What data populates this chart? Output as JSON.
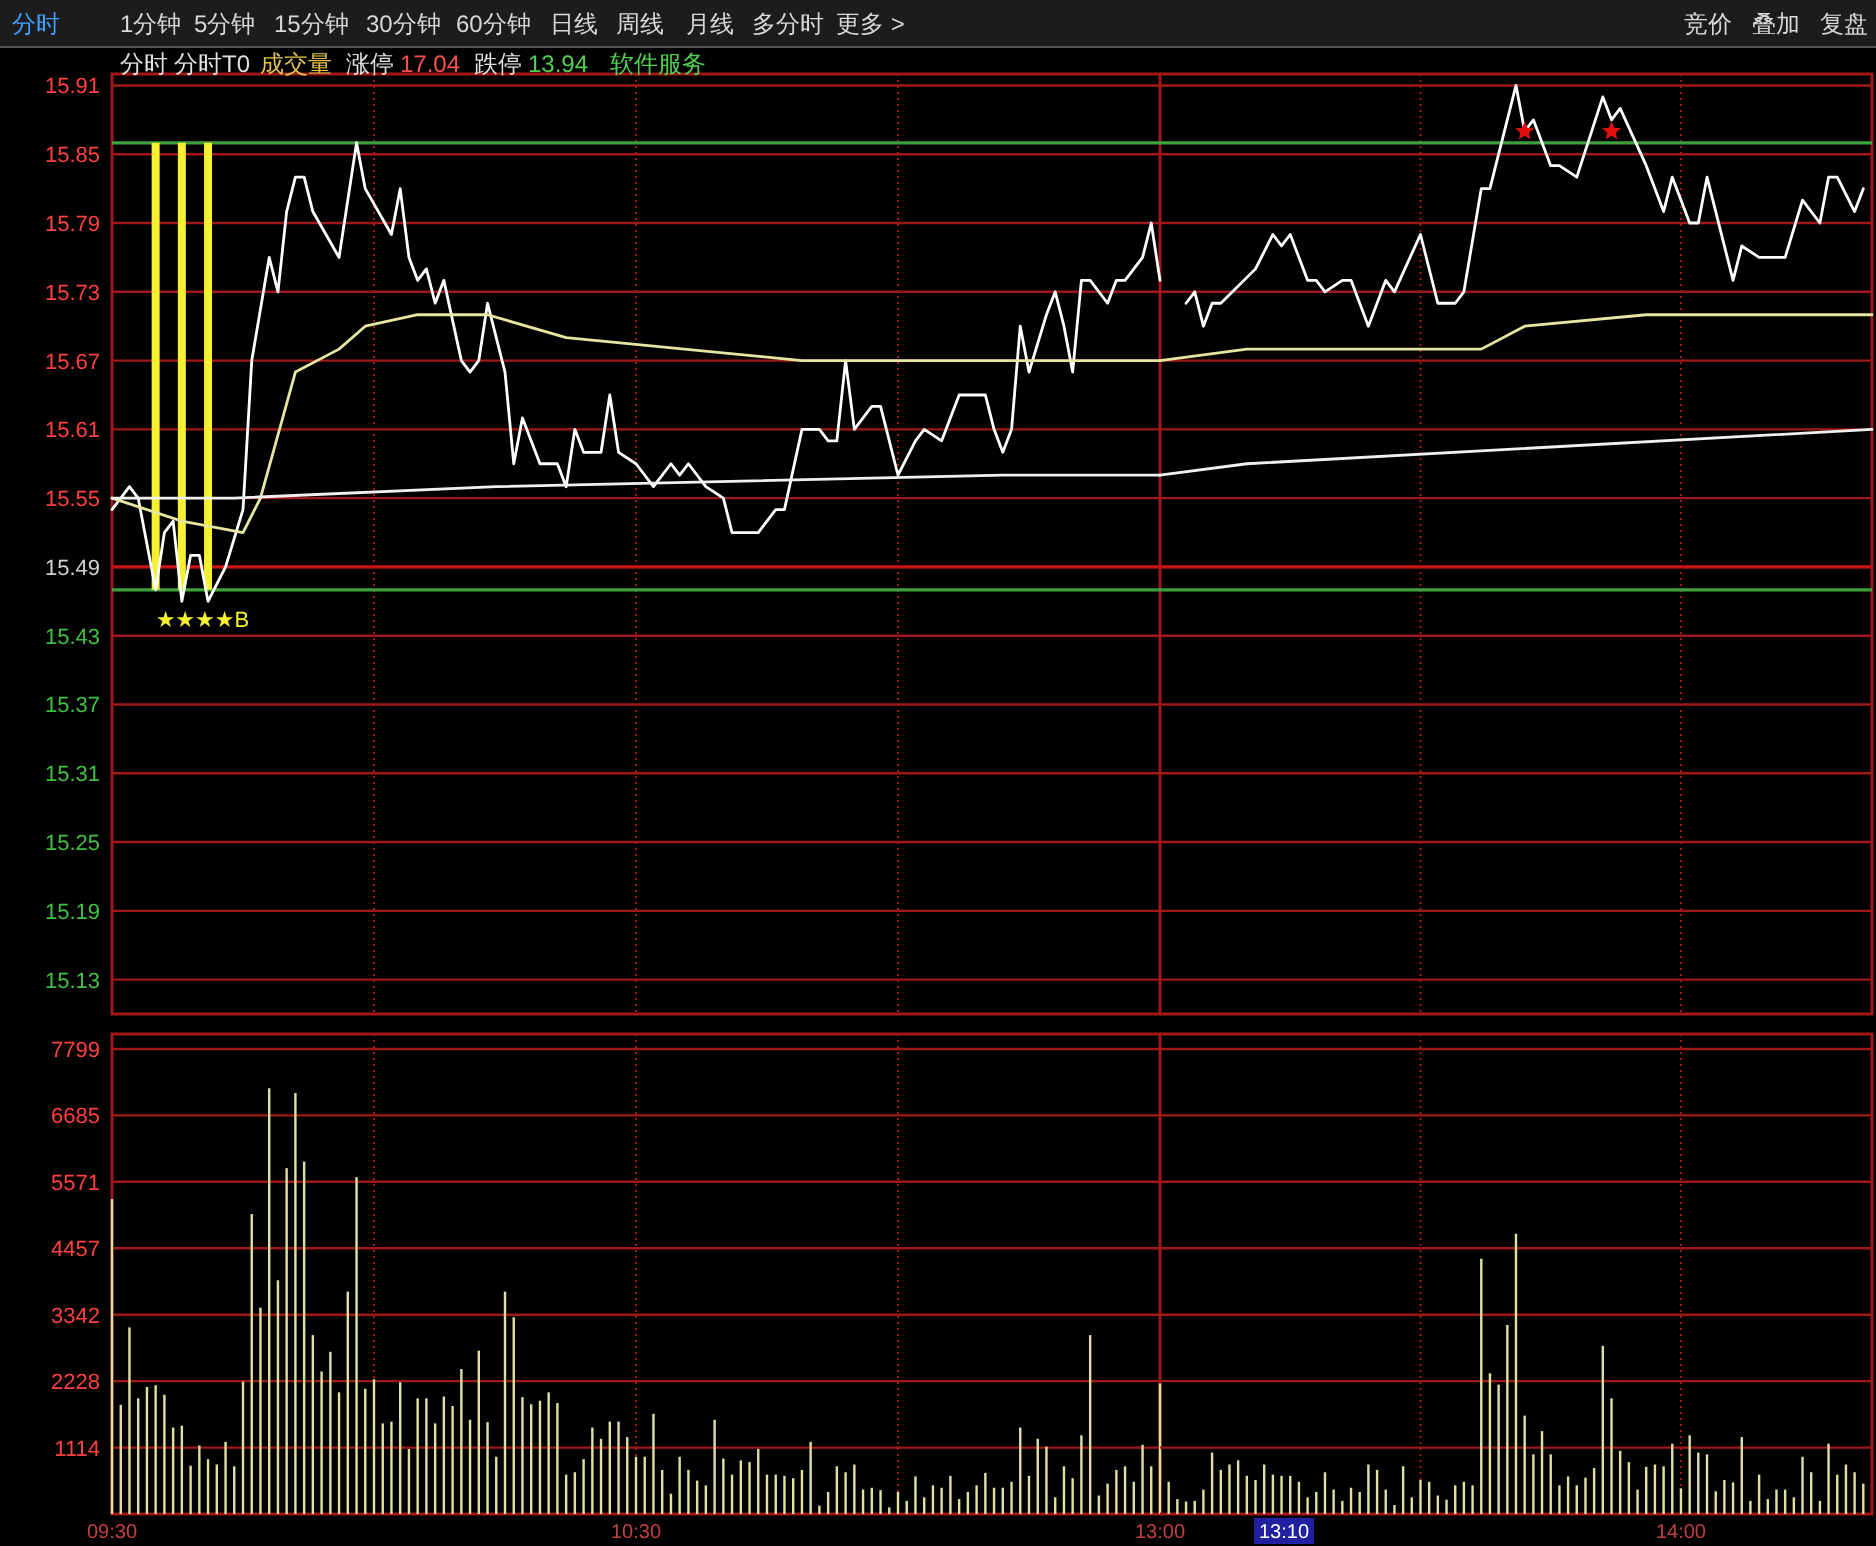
{
  "chart_data": [
    {
      "type": "line",
      "tick_labels": "y",
      "grid": true,
      "xlim": [
        9.5,
        11.5
      ],
      "ylim": [
        15.1,
        15.92
      ],
      "xticks": [
        {
          "value": 9.5,
          "label": null
        },
        {
          "value": 10,
          "label": null
        },
        {
          "value": 10.5,
          "label": null
        },
        {
          "value": 11,
          "label": null
        }
      ],
      "yticks": [
        15.13,
        15.19,
        15.25,
        15.31,
        15.37,
        15.43,
        15.49,
        15.55,
        15.61,
        15.67,
        15.73,
        15.79,
        15.85,
        15.91
      ],
      "series": [
        {
          "type": "line",
          "color": "#ffffff",
          "x": [
            9.5,
            9.5333,
            9.55,
            9.5833,
            9.6,
            9.6167,
            9.6333,
            9.65,
            9.6667,
            9.6833,
            9.7167,
            9.75,
            9.7667,
            9.8,
            9.8167,
            9.8333,
            9.85,
            9.8667,
            9.8833,
            9.9333,
            9.9667,
            9.9833,
            10.0333,
            10.05,
            10.0667,
            10.0833,
            10.1,
            10.1167,
            10.1333,
            10.1667,
            10.1833,
            10.2,
            10.2167,
            10.2333,
            10.25,
            10.2667,
            10.2833,
            10.3167,
            10.35,
            10.3667,
            10.3833,
            10.4,
            10.4333,
            10.45,
            10.4667,
            10.5,
            10.5333,
            10.5667,
            10.5833,
            10.6,
            10.6333,
            10.6667,
            10.6833,
            10.7333,
            10.7667,
            10.7833,
            10.8167,
            10.85,
            10.8667,
            10.8833,
            10.9,
            10.9167,
            10.95,
            10.9667,
            11.0,
            11.0333,
            11.05,
            11.0833,
            11.1167,
            11.1667,
            11.1833,
            11.2,
            11.2167,
            11.2333,
            11.25,
            11.2833,
            11.3,
            11.3167,
            11.3333,
            11.35,
            11.3667,
            11.4,
            11.4167,
            11.4333,
            11.4667,
            11.4833,
            11.5
          ],
          "values": [
            15.54,
            15.56,
            15.55,
            15.47,
            15.52,
            15.53,
            15.46,
            15.5,
            15.5,
            15.46,
            15.49,
            15.54,
            15.67,
            15.76,
            15.73,
            15.8,
            15.83,
            15.83,
            15.8,
            15.76,
            15.86,
            15.82,
            15.78,
            15.82,
            15.76,
            15.74,
            15.75,
            15.72,
            15.74,
            15.67,
            15.66,
            15.67,
            15.72,
            15.69,
            15.66,
            15.58,
            15.62,
            15.58,
            15.58,
            15.56,
            15.61,
            15.59,
            15.59,
            15.64,
            15.59,
            15.58,
            15.56,
            15.58,
            15.57,
            15.58,
            15.56,
            15.55,
            15.52,
            15.52,
            15.54,
            15.54,
            15.61,
            15.61,
            15.6,
            15.6,
            15.67,
            15.61,
            15.63,
            15.63,
            15.57,
            15.6,
            15.61,
            15.6,
            15.64,
            15.64,
            15.61,
            15.59,
            15.61,
            15.7,
            15.66,
            15.71,
            15.73,
            15.7,
            15.66,
            15.74,
            15.74,
            15.72,
            15.74,
            15.74,
            15.76,
            15.79,
            15.74
          ]
        },
        {
          "type": "line",
          "color": "#e6e6a0",
          "x": [
            9.5,
            9.6333,
            9.75,
            9.7833,
            9.85,
            9.9333,
            9.9833,
            10.0833,
            10.2167,
            10.3667,
            10.8167,
            11.0,
            11.15,
            11.5
          ],
          "values": [
            15.55,
            15.53,
            15.52,
            15.55,
            15.66,
            15.68,
            15.7,
            15.71,
            15.71,
            15.69,
            15.67,
            15.67,
            15.67,
            15.67
          ]
        },
        {
          "type": "line",
          "color": "#f0f0f0",
          "x": [
            9.5,
            9.7333,
            10.2333,
            11.2,
            11.5
          ],
          "values": [
            15.55,
            15.55,
            15.56,
            15.57,
            15.57
          ]
        }
      ],
      "ref_lines": [
        {
          "axis": "y",
          "value": 15.49,
          "color": "#c81414"
        },
        {
          "axis": "y",
          "value": 15.86,
          "color": "#3ca03c"
        },
        {
          "axis": "y",
          "value": 15.47,
          "color": "#3ca03c"
        },
        {
          "axis": "x",
          "value": 9.5833,
          "color": "#f5f032"
        },
        {
          "axis": "x",
          "value": 9.6333,
          "color": "#f5f032"
        },
        {
          "axis": "x",
          "value": 9.6833,
          "color": "#f5f032"
        }
      ],
      "annotations": [
        "分时",
        "1分钟",
        "5分钟",
        "15分钟",
        "30分钟",
        "60分钟",
        "日线",
        "周线",
        "月线",
        "多分时",
        "更多 >",
        "竞价",
        "叠加",
        "复盘",
        "分时",
        "分时T0",
        "成交量",
        "涨停",
        "17.04",
        "跌停",
        "13.94",
        "软件服务",
        {
          "text": "★★★★B",
          "x": 9.5833,
          "y": 15.49
        }
      ]
    },
    {
      "type": "line",
      "tick_labels": false,
      "grid": true,
      "xlim": [
        13.0,
        14.3667
      ],
      "ylim": [
        15.1,
        15.92
      ],
      "xticks": [
        {
          "value": 13,
          "label": null
        },
        {
          "value": 13.5,
          "label": null
        },
        {
          "value": 14,
          "label": null
        }
      ],
      "yticks": [
        15.13,
        15.19,
        15.25,
        15.31,
        15.37,
        15.43,
        15.49,
        15.55,
        15.61,
        15.67,
        15.73,
        15.79,
        15.85,
        15.91
      ],
      "series": [
        {
          "type": "line",
          "color": "#ffffff",
          "x": [
            13.05,
            13.0667,
            13.0833,
            13.1,
            13.1167,
            13.1833,
            13.2167,
            13.2333,
            13.25,
            13.2833,
            13.3,
            13.3167,
            13.35,
            13.3667,
            13.4,
            13.4333,
            13.45,
            13.5,
            13.5333,
            13.5667,
            13.5833,
            13.6167,
            13.6333,
            13.6833,
            13.7,
            13.7167,
            13.75,
            13.7667,
            13.8,
            13.85,
            13.8667,
            13.8833,
            13.9333,
            13.9667,
            13.9833,
            14.0167,
            14.0333,
            14.05,
            14.1,
            14.1167,
            14.15,
            14.2,
            14.2333,
            14.2667,
            14.2833,
            14.3,
            14.3333,
            14.35
          ],
          "values": [
            15.72,
            15.73,
            15.7,
            15.72,
            15.72,
            15.75,
            15.78,
            15.77,
            15.78,
            15.74,
            15.74,
            15.73,
            15.74,
            15.74,
            15.7,
            15.74,
            15.73,
            15.78,
            15.72,
            15.72,
            15.73,
            15.82,
            15.82,
            15.91,
            15.87,
            15.88,
            15.84,
            15.84,
            15.83,
            15.9,
            15.88,
            15.89,
            15.84,
            15.8,
            15.83,
            15.79,
            15.79,
            15.83,
            15.74,
            15.77,
            15.76,
            15.76,
            15.81,
            15.79,
            15.83,
            15.83,
            15.8,
            15.82
          ]
        },
        {
          "type": "line",
          "color": "#e6e6a0",
          "x": [
            13.0,
            13.1667,
            13.6167,
            13.7,
            13.9333,
            14.3667
          ],
          "values": [
            15.67,
            15.68,
            15.68,
            15.7,
            15.71,
            15.71
          ]
        },
        {
          "type": "line",
          "color": "#f0f0f0",
          "x": [
            13.0,
            13.1667,
            14.3667
          ],
          "values": [
            15.57,
            15.58,
            15.61
          ]
        },
        {
          "type": "scatter",
          "marker": "star",
          "color": "#e01010",
          "x": [
            13.7,
            13.8667
          ],
          "values": [
            15.87,
            15.87
          ]
        }
      ],
      "ref_lines": [
        {
          "axis": "y",
          "value": 15.49,
          "color": "#c81414"
        },
        {
          "axis": "y",
          "value": 15.86,
          "color": "#3ca03c"
        },
        {
          "axis": "y",
          "value": 15.47,
          "color": "#3ca03c"
        }
      ]
    },
    {
      "type": "bar",
      "grid": true,
      "color": "#e0e0a0",
      "xlim": [
        9.5,
        11.5
      ],
      "ylim": [
        0,
        8050
      ],
      "xticks": [
        {
          "value": 9.5,
          "label": "09:30"
        },
        {
          "value": 10,
          "label": null
        },
        {
          "value": 10.5,
          "label": "10:30"
        },
        {
          "value": 11,
          "label": null
        }
      ],
      "yticks": [
        1114,
        2228,
        3342,
        4457,
        5571,
        6685,
        7799
      ],
      "x": [
        9.5,
        9.5167,
        9.5333,
        9.55,
        9.5667,
        9.5833,
        9.6,
        9.6167,
        9.6333,
        9.65,
        9.6667,
        9.6833,
        9.7,
        9.7167,
        9.7333,
        9.75,
        9.7667,
        9.7833,
        9.8,
        9.8167,
        9.8333,
        9.85,
        9.8667,
        9.8833,
        9.9,
        9.9167,
        9.9333,
        9.95,
        9.9667,
        9.9833,
        10.0,
        10.0167,
        10.0333,
        10.05,
        10.0667,
        10.0833,
        10.1,
        10.1167,
        10.1333,
        10.15,
        10.1667,
        10.1833,
        10.2,
        10.2167,
        10.2333,
        10.25,
        10.2667,
        10.2833,
        10.3,
        10.3167,
        10.3333,
        10.35,
        10.3667,
        10.3833,
        10.4,
        10.4167,
        10.4333,
        10.45,
        10.4667,
        10.4833,
        10.5,
        10.5167,
        10.5333,
        10.55,
        10.5667,
        10.5833,
        10.6,
        10.6167,
        10.6333,
        10.65,
        10.6667,
        10.6833,
        10.7,
        10.7167,
        10.7333,
        10.75,
        10.7667,
        10.7833,
        10.8,
        10.8167,
        10.8333,
        10.85,
        10.8667,
        10.8833,
        10.9,
        10.9167,
        10.9333,
        10.95,
        10.9667,
        10.9833,
        11.0,
        11.0167,
        11.0333,
        11.05,
        11.0667,
        11.0833,
        11.1,
        11.1167,
        11.1333,
        11.15,
        11.1667,
        11.1833,
        11.2,
        11.2167,
        11.2333,
        11.25,
        11.2667,
        11.2833,
        11.3,
        11.3167,
        11.3333,
        11.35,
        11.3667,
        11.3833,
        11.4,
        11.4167,
        11.4333,
        11.45,
        11.4667,
        11.4833,
        11.5
      ],
      "values": [
        5280,
        1830,
        3130,
        1940,
        2130,
        2160,
        2000,
        1450,
        1480,
        810,
        1150,
        920,
        830,
        1210,
        800,
        2220,
        5030,
        3460,
        7140,
        3920,
        5800,
        7060,
        5910,
        3000,
        2390,
        2720,
        2040,
        3730,
        5650,
        2100,
        2260,
        1520,
        1550,
        2210,
        1090,
        1940,
        1940,
        1520,
        1970,
        1810,
        2430,
        1580,
        2740,
        1540,
        960,
        3730,
        3300,
        1960,
        1840,
        1900,
        2040,
        1860,
        660,
        700,
        920,
        1450,
        1260,
        1550,
        1550,
        1290,
        960,
        960,
        1680,
        740,
        340,
        960,
        740,
        560,
        480,
        1580,
        930,
        660,
        900,
        870,
        1090,
        660,
        660,
        640,
        600,
        740,
        1210,
        140,
        370,
        800,
        700,
        830,
        410,
        440,
        400,
        110,
        370,
        220,
        630,
        280,
        480,
        440,
        640,
        250,
        370,
        480,
        690,
        440,
        440,
        540,
        1450,
        640,
        1260,
        1130,
        280,
        800,
        600,
        1320,
        3000,
        310,
        510,
        740,
        800,
        540,
        1160,
        800,
        2190
      ]
    },
    {
      "type": "bar",
      "tick_labels": "x",
      "grid": true,
      "color": "#e0e0a0",
      "xlim": [
        13.0,
        14.3667
      ],
      "ylim": [
        0,
        8050
      ],
      "xticks": [
        {
          "value": 13,
          "label": "13:00"
        },
        {
          "value": 13.5,
          "label": null
        },
        {
          "value": 14,
          "label": "14:00"
        }
      ],
      "yticks": [
        1114,
        2228,
        3342,
        4457,
        5571,
        6685,
        7799
      ],
      "x": [
        13.0167,
        13.0333,
        13.05,
        13.0667,
        13.0833,
        13.1,
        13.1167,
        13.1333,
        13.15,
        13.1667,
        13.1833,
        13.2,
        13.2167,
        13.2333,
        13.25,
        13.2667,
        13.2833,
        13.3,
        13.3167,
        13.3333,
        13.35,
        13.3667,
        13.3833,
        13.4,
        13.4167,
        13.4333,
        13.45,
        13.4667,
        13.4833,
        13.5,
        13.5167,
        13.5333,
        13.55,
        13.5667,
        13.5833,
        13.6,
        13.6167,
        13.6333,
        13.65,
        13.6667,
        13.6833,
        13.7,
        13.7167,
        13.7333,
        13.75,
        13.7667,
        13.7833,
        13.8,
        13.8167,
        13.8333,
        13.85,
        13.8667,
        13.8833,
        13.9,
        13.9167,
        13.9333,
        13.95,
        13.9667,
        13.9833,
        14.0,
        14.0167,
        14.0333,
        14.05,
        14.0667,
        14.0833,
        14.1,
        14.1167,
        14.1333,
        14.15,
        14.1667,
        14.1833,
        14.2,
        14.2167,
        14.2333,
        14.25,
        14.2667,
        14.2833,
        14.3,
        14.3167,
        14.3333,
        14.35
      ],
      "values": [
        540,
        250,
        210,
        220,
        410,
        1030,
        740,
        830,
        900,
        640,
        570,
        830,
        660,
        640,
        640,
        540,
        280,
        370,
        700,
        410,
        220,
        440,
        370,
        830,
        740,
        410,
        150,
        800,
        280,
        570,
        540,
        310,
        240,
        480,
        540,
        480,
        4280,
        2360,
        2170,
        3170,
        4700,
        1650,
        1000,
        1390,
        1000,
        480,
        630,
        480,
        610,
        770,
        2820,
        1940,
        1060,
        870,
        410,
        790,
        830,
        800,
        1180,
        430,
        1320,
        1030,
        1000,
        380,
        570,
        530,
        1290,
        220,
        660,
        250,
        410,
        410,
        280,
        960,
        700,
        220,
        1180,
        660,
        830,
        700,
        510
      ],
      "annotations": [
        "13:10"
      ]
    }
  ]
}
